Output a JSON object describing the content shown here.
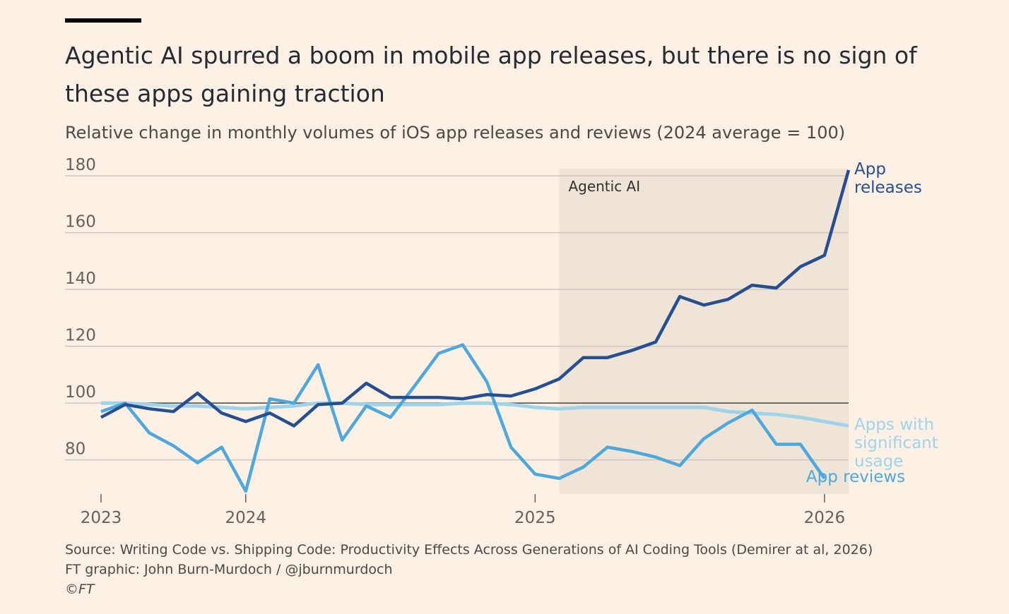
{
  "chart_data": {
    "type": "line",
    "title": "Agentic AI spurred a boom in mobile app releases, but there is no sign of these apps gaining traction",
    "subtitle": "Relative change in monthly volumes of iOS app releases and reviews (2024 average = 100)",
    "x": [
      2023.5,
      2023.5833,
      2023.6667,
      2023.75,
      2023.8333,
      2023.9167,
      2024.0,
      2024.0833,
      2024.1667,
      2024.25,
      2024.3333,
      2024.4167,
      2024.5,
      2024.5833,
      2024.6667,
      2024.75,
      2024.8333,
      2024.9167,
      2025.0,
      2025.0833,
      2025.1667,
      2025.25,
      2025.3333,
      2025.4167,
      2025.5,
      2025.5833,
      2025.6667,
      2025.75,
      2025.8333,
      2025.9167,
      2026.0,
      2026.0833
    ],
    "series": [
      {
        "name": "App releases",
        "color": "#264f8f",
        "values": [
          95,
          99.5,
          98,
          97,
          103.5,
          96.5,
          93.5,
          96.5,
          92,
          99.5,
          100,
          107,
          102,
          102,
          102,
          101.5,
          103,
          102.5,
          105,
          108.5,
          116,
          116,
          118.5,
          121.5,
          137.5,
          134.5,
          136.5,
          141.5,
          140.5,
          148,
          152,
          182
        ]
      },
      {
        "name": "Apps with significant usage",
        "color": "#9fd3ea",
        "values": [
          100,
          100,
          99.5,
          99,
          99,
          98.5,
          98,
          98.5,
          99,
          100,
          100,
          99.5,
          99.5,
          99.5,
          99.5,
          100,
          100,
          99.5,
          98.5,
          98,
          98.5,
          98.5,
          98.5,
          98.5,
          98.5,
          98.5,
          97,
          96.5,
          96,
          95,
          93.5,
          92
        ]
      },
      {
        "name": "App reviews",
        "color": "#4ea8db",
        "values": [
          97,
          100,
          89.5,
          85,
          79,
          84.5,
          69,
          101.5,
          100,
          113.5,
          87,
          99,
          95,
          106,
          117.5,
          120.5,
          107.5,
          84.5,
          75,
          73.5,
          77.5,
          84.5,
          83,
          81,
          78,
          87.5,
          93,
          97.5,
          85.5,
          85.5,
          73.5,
          null
        ]
      }
    ],
    "xlim": [
      2023.5,
      2026.0833
    ],
    "xticks": [
      {
        "value": 2023.5,
        "label": "2023"
      },
      2024,
      2025,
      2026
    ],
    "ylim": [
      68,
      182.5
    ],
    "yticks": [
      80,
      100,
      120,
      140,
      160,
      180
    ],
    "grid": true,
    "reference_line": 100,
    "annotations": [
      {
        "text": "Agentic AI",
        "x_range": [
          2025.0833,
          2026.0833
        ]
      }
    ],
    "source": "Source: Writing Code vs. Shipping Code: Productivity Effects Across Generations of AI Coding Tools (Demirer at al, 2026)",
    "credit": "FT graphic: John Burn-Murdoch / @jburnmurdoch",
    "copyright": "©FT"
  }
}
